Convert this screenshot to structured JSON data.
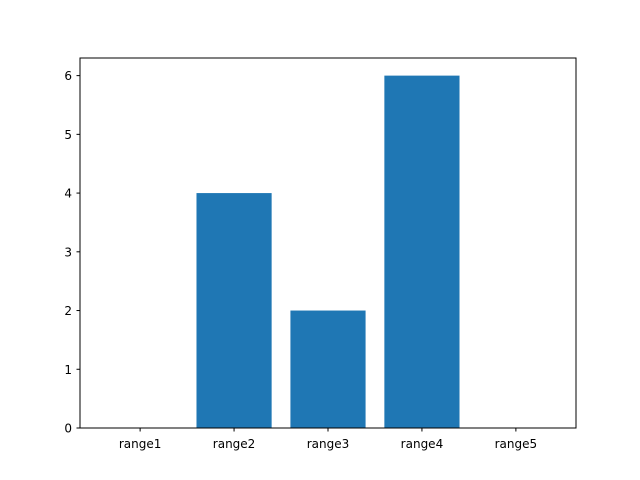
{
  "chart_data": {
    "type": "bar",
    "categories": [
      "range1",
      "range2",
      "range3",
      "range4",
      "range5"
    ],
    "values": [
      0,
      4,
      2,
      6,
      0
    ],
    "title": "",
    "xlabel": "",
    "ylabel": "",
    "ylim": [
      0,
      6.3
    ],
    "yticks": [
      0,
      1,
      2,
      3,
      4,
      5,
      6
    ],
    "grid": false,
    "bar_color": "#1f77b4"
  }
}
